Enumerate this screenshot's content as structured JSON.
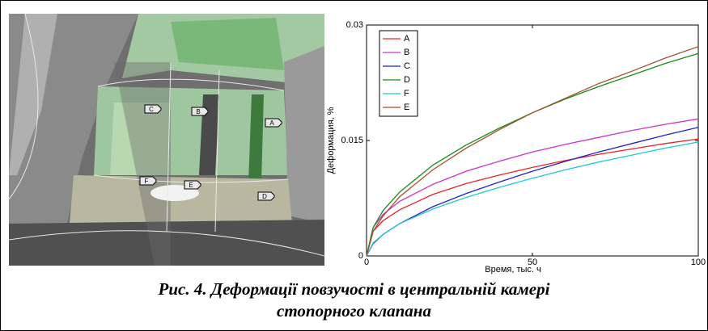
{
  "image_labels": [
    "A",
    "B",
    "C",
    "D",
    "E",
    "F"
  ],
  "chart_data": {
    "type": "line",
    "xlabel": "Время, тыс. ч",
    "ylabel": "Деформация, %",
    "x": [
      0,
      2,
      5,
      10,
      20,
      30,
      40,
      50,
      60,
      70,
      80,
      90,
      100
    ],
    "series": [
      {
        "name": "A",
        "color": "#e8242a",
        "values": [
          0,
          0.0032,
          0.0046,
          0.006,
          0.008,
          0.0094,
          0.0105,
          0.0115,
          0.0124,
          0.0132,
          0.0139,
          0.0146,
          0.0152
        ]
      },
      {
        "name": "B",
        "color": "#cc33cc",
        "values": [
          0,
          0.0037,
          0.0054,
          0.0071,
          0.0093,
          0.011,
          0.0123,
          0.0135,
          0.0145,
          0.0154,
          0.0163,
          0.0171,
          0.0178
        ]
      },
      {
        "name": "C",
        "color": "#2222cc",
        "values": [
          0,
          0.0016,
          0.0028,
          0.0042,
          0.0064,
          0.0081,
          0.0096,
          0.011,
          0.0123,
          0.0135,
          0.0146,
          0.0157,
          0.0167
        ]
      },
      {
        "name": "D",
        "color": "#1a8a1a",
        "values": [
          0,
          0.0037,
          0.0059,
          0.0083,
          0.0118,
          0.0144,
          0.0166,
          0.0186,
          0.0204,
          0.022,
          0.0235,
          0.025,
          0.0263
        ]
      },
      {
        "name": "F",
        "color": "#22c8d2",
        "values": [
          0,
          0.0017,
          0.0028,
          0.0042,
          0.0061,
          0.0076,
          0.0089,
          0.0101,
          0.0112,
          0.0122,
          0.0131,
          0.014,
          0.0148
        ]
      },
      {
        "name": "E",
        "color": "#a0522d",
        "values": [
          0,
          0.0032,
          0.0052,
          0.0077,
          0.0112,
          0.014,
          0.0164,
          0.0186,
          0.0205,
          0.0224,
          0.024,
          0.0257,
          0.0272
        ]
      }
    ],
    "xlim": [
      0,
      100
    ],
    "xticks": [
      0,
      50,
      100
    ],
    "ylim": [
      0,
      0.03
    ],
    "yticks": [
      0,
      0.015,
      0.03
    ],
    "legend": "upper left"
  },
  "caption": [
    "Рис. 4. Деформації повзучості в центральній камері",
    "стопорного клапана"
  ]
}
